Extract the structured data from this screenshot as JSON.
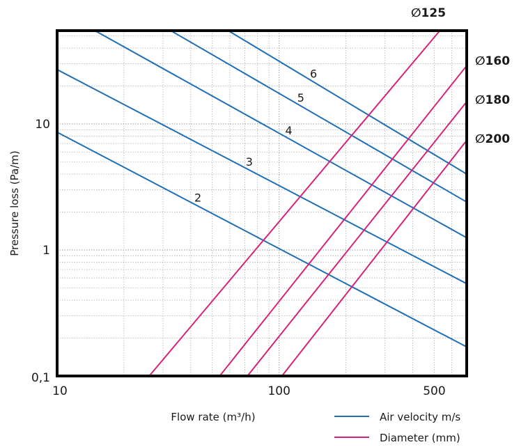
{
  "chart_data": {
    "type": "line",
    "xlabel": "Flow rate (m³/h)",
    "ylabel": "Pressure loss (Pa/m)",
    "x_scale": "log",
    "y_scale": "log",
    "xlim": [
      10,
      700
    ],
    "ylim": [
      0.1,
      55
    ],
    "x_ticks": [
      {
        "value": 10,
        "label": "10"
      },
      {
        "value": 100,
        "label": "100"
      },
      {
        "value": 500,
        "label": "500"
      }
    ],
    "y_ticks": [
      {
        "value": 0.1,
        "label": "0,1"
      },
      {
        "value": 1,
        "label": "1"
      },
      {
        "value": 10,
        "label": "10"
      }
    ],
    "grid": true,
    "colors": {
      "velocity": "#1f6fb5",
      "diameter": "#d6237a",
      "grid": "#9a9a9a",
      "frame": "#000000"
    },
    "legend": {
      "placement": "bottom-right",
      "items": [
        {
          "label": "Air velocity m/s",
          "group": "velocity"
        },
        {
          "label": "Diameter (mm)",
          "group": "diameter"
        }
      ]
    },
    "velocity_lines": [
      {
        "label": "2",
        "points": [
          [
            10,
            8.6
          ],
          [
            700,
            0.17
          ]
        ]
      },
      {
        "label": "3",
        "points": [
          [
            10,
            27
          ],
          [
            700,
            0.54
          ]
        ]
      },
      {
        "label": "4",
        "points": [
          [
            14.8,
            55
          ],
          [
            700,
            1.25
          ]
        ]
      },
      {
        "label": "5",
        "points": [
          [
            32.5,
            55
          ],
          [
            700,
            2.4
          ]
        ]
      },
      {
        "label": "6",
        "points": [
          [
            59,
            55
          ],
          [
            700,
            4
          ]
        ]
      }
    ],
    "diameter_lines": [
      {
        "label": "∅125",
        "points": [
          [
            26,
            0.1
          ],
          [
            530,
            55
          ]
        ]
      },
      {
        "label": "∅160",
        "points": [
          [
            54,
            0.1
          ],
          [
            700,
            29
          ]
        ]
      },
      {
        "label": "∅180",
        "points": [
          [
            72,
            0.1
          ],
          [
            700,
            15
          ]
        ]
      },
      {
        "label": "∅200",
        "points": [
          [
            103,
            0.1
          ],
          [
            700,
            7.4
          ]
        ]
      }
    ]
  }
}
